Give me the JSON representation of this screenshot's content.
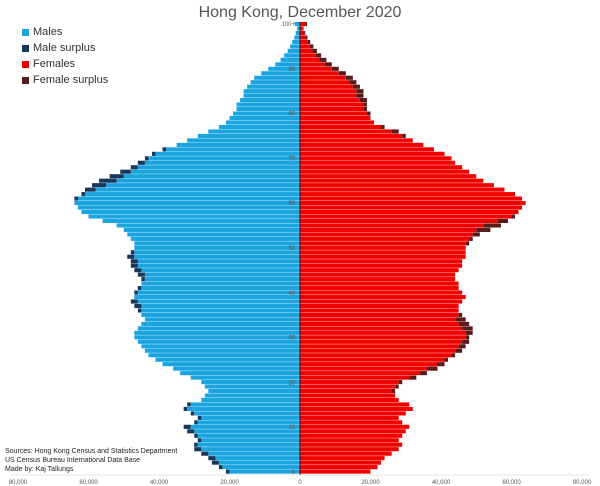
{
  "title": "Hong Kong, December 2020",
  "legend": [
    {
      "label": "Males",
      "color": "#1aa4e0"
    },
    {
      "label": "Male surplus",
      "color": "#17385a"
    },
    {
      "label": "Females",
      "color": "#f20000"
    },
    {
      "label": "Female surplus",
      "color": "#5a1a1a"
    }
  ],
  "sources": {
    "line1": "Sources: Hong Kong Census and Statistics Department",
    "line2": "US Census Bureau International Data Base",
    "line3": "Made by: Kaj Tallungs"
  },
  "chart_data": {
    "type": "bar",
    "orientation": "horizontal",
    "title": "Hong Kong, December 2020",
    "x_tick_labels": [
      "80,000",
      "60,000",
      "40,000",
      "20,000",
      "0",
      "20,000",
      "40,000",
      "60,000",
      "80,000"
    ],
    "x_range": [
      -80000,
      80000
    ],
    "y_tick_labels": [
      "0",
      "10",
      "20",
      "30",
      "40",
      "50",
      "60",
      "70",
      "80",
      "90",
      "100+"
    ],
    "ages": [
      0,
      1,
      2,
      3,
      4,
      5,
      6,
      7,
      8,
      9,
      10,
      11,
      12,
      13,
      14,
      15,
      16,
      17,
      18,
      19,
      20,
      21,
      22,
      23,
      24,
      25,
      26,
      27,
      28,
      29,
      30,
      31,
      32,
      33,
      34,
      35,
      36,
      37,
      38,
      39,
      40,
      41,
      42,
      43,
      44,
      45,
      46,
      47,
      48,
      49,
      50,
      51,
      52,
      53,
      54,
      55,
      56,
      57,
      58,
      59,
      60,
      61,
      62,
      63,
      64,
      65,
      66,
      67,
      68,
      69,
      70,
      71,
      72,
      73,
      74,
      75,
      76,
      77,
      78,
      79,
      80,
      81,
      82,
      83,
      84,
      85,
      86,
      87,
      88,
      89,
      90,
      91,
      92,
      93,
      94,
      95,
      96,
      97,
      98,
      99,
      100
    ],
    "series": [
      {
        "name": "Males",
        "values": [
          21000,
          23000,
          25000,
          26000,
          28000,
          30000,
          30000,
          29000,
          30000,
          32000,
          33000,
          30000,
          29000,
          31000,
          33000,
          32000,
          28000,
          27000,
          26000,
          27000,
          28000,
          31000,
          34000,
          36000,
          39000,
          41000,
          43000,
          44000,
          45000,
          46000,
          47000,
          47000,
          46000,
          45000,
          44000,
          45000,
          46000,
          47000,
          48000,
          47000,
          47000,
          46000,
          45000,
          45000,
          46000,
          47000,
          48000,
          48000,
          49000,
          48000,
          47000,
          47000,
          48000,
          49000,
          50000,
          52000,
          56000,
          60000,
          62000,
          63000,
          64000,
          64000,
          62000,
          61000,
          59000,
          57000,
          54000,
          51000,
          48000,
          46000,
          44000,
          42000,
          39000,
          35000,
          32000,
          29000,
          26000,
          23000,
          21000,
          20000,
          19000,
          18000,
          18000,
          17000,
          16000,
          16000,
          15000,
          14000,
          13000,
          11000,
          9000,
          7000,
          5500,
          4500,
          3500,
          2800,
          2200,
          1600,
          1200,
          800,
          1500
        ]
      },
      {
        "name": "Females",
        "values": [
          20000,
          22000,
          23000,
          24000,
          26000,
          28000,
          29000,
          28000,
          29000,
          30000,
          31000,
          29000,
          28000,
          30000,
          32000,
          31000,
          28000,
          27000,
          27000,
          28000,
          29000,
          33000,
          36000,
          39000,
          41000,
          42000,
          44000,
          46000,
          47000,
          48000,
          48000,
          49000,
          49000,
          48000,
          47000,
          46000,
          45000,
          45000,
          46000,
          47000,
          46000,
          45000,
          45000,
          44000,
          44000,
          45000,
          46000,
          46000,
          47000,
          47000,
          47000,
          48000,
          49000,
          51000,
          54000,
          57000,
          59000,
          61000,
          62000,
          63000,
          64000,
          63000,
          61000,
          58000,
          55000,
          52000,
          50000,
          48000,
          46000,
          44000,
          43000,
          41000,
          38000,
          35000,
          32000,
          30000,
          28000,
          24000,
          21000,
          20000,
          20000,
          19000,
          19000,
          19000,
          18000,
          18000,
          17000,
          16000,
          15000,
          13000,
          11000,
          9000,
          7500,
          6000,
          4800,
          3800,
          2900,
          2100,
          1500,
          1000,
          2000
        ]
      }
    ]
  }
}
